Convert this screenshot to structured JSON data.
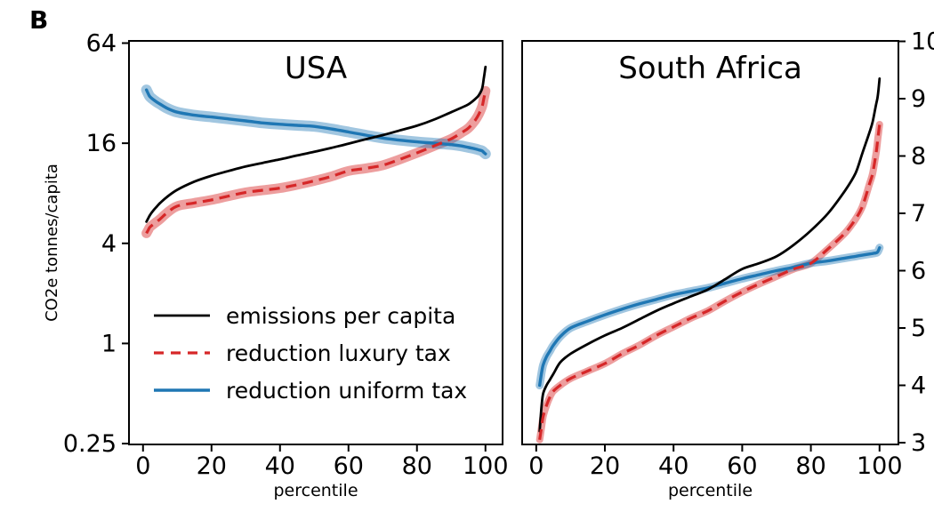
{
  "figure_label": "B",
  "legend": {
    "items": [
      {
        "label": "emissions per capita",
        "series": "emissions"
      },
      {
        "label": "reduction luxury tax",
        "series": "luxury"
      },
      {
        "label": "reduction uniform tax",
        "series": "uniform"
      }
    ]
  },
  "chart_data": [
    {
      "type": "line",
      "title": "USA",
      "xlabel": "percentile",
      "ylabel": "CO2e tonnes/capita",
      "yscale": "log",
      "xlim": [
        -4.1,
        105.0
      ],
      "ylim": [
        0.247,
        66.0
      ],
      "xticks": [
        0,
        20,
        40,
        60,
        80,
        100
      ],
      "xtick_labels": [
        "0",
        "20",
        "40",
        "60",
        "80",
        "100"
      ],
      "yticks": [
        64,
        16,
        4,
        1,
        0.25
      ],
      "ytick_labels": [
        "64",
        "16",
        "4",
        "1",
        "0.25"
      ],
      "ytick_side": "left",
      "x": [
        1,
        1.5,
        2,
        3,
        4,
        5,
        7,
        10,
        15,
        20,
        25,
        30,
        35,
        40,
        45,
        50,
        55,
        60,
        65,
        70,
        75,
        80,
        85,
        90,
        93,
        95,
        97,
        98,
        99,
        99.5,
        100
      ],
      "series": [
        {
          "key": "emissions",
          "name": "emissions per capita",
          "color": "#000000",
          "style": "solid",
          "band": false,
          "values": [
            5.4,
            5.65,
            5.9,
            6.3,
            6.65,
            7.0,
            7.6,
            8.4,
            9.4,
            10.2,
            10.9,
            11.6,
            12.2,
            12.8,
            13.5,
            14.2,
            15.0,
            15.9,
            16.9,
            17.9,
            19.1,
            20.4,
            22.2,
            24.6,
            26.2,
            27.4,
            29.5,
            31.0,
            34.0,
            39.0,
            46.0
          ]
        },
        {
          "key": "luxury",
          "name": "reduction luxury tax",
          "color": "#d62728",
          "style": "dashed",
          "band": true,
          "band_color": "rgba(214,39,40,0.45)",
          "values": [
            4.6,
            4.8,
            5.0,
            5.2,
            5.4,
            5.6,
            6.1,
            6.7,
            7.0,
            7.3,
            7.7,
            8.1,
            8.35,
            8.6,
            9.0,
            9.5,
            10.1,
            10.9,
            11.3,
            11.8,
            12.8,
            14.0,
            15.4,
            17.0,
            18.5,
            19.7,
            22.0,
            23.8,
            26.5,
            29.5,
            33.0
          ]
        },
        {
          "key": "uniform",
          "name": "reduction uniform tax",
          "color": "#1f77b4",
          "style": "solid",
          "band": true,
          "band_color": "rgba(31,119,180,0.42)",
          "values": [
            33.5,
            31.8,
            30.5,
            29.3,
            28.3,
            27.5,
            26.0,
            24.6,
            23.6,
            23.0,
            22.4,
            21.8,
            21.2,
            20.8,
            20.5,
            20.2,
            19.5,
            18.7,
            17.9,
            17.2,
            16.7,
            16.3,
            16.0,
            15.7,
            15.4,
            15.1,
            14.8,
            14.6,
            14.4,
            14.1,
            13.8
          ]
        }
      ]
    },
    {
      "type": "line",
      "title": "South Africa",
      "xlabel": "percentile",
      "ylabel": "",
      "yscale": "linear",
      "xlim": [
        -4.1,
        105.5
      ],
      "ylim": [
        2.969,
        10.008
      ],
      "xticks": [
        0,
        20,
        40,
        60,
        80,
        100
      ],
      "xtick_labels": [
        "0",
        "20",
        "40",
        "60",
        "80",
        "100"
      ],
      "yticks": [
        10,
        9,
        8,
        7,
        6,
        5,
        4,
        3
      ],
      "ytick_labels": [
        "10",
        "9",
        "8",
        "7",
        "6",
        "5",
        "4",
        "3"
      ],
      "ytick_side": "right",
      "x": [
        1,
        1.5,
        2,
        3,
        4,
        5,
        7,
        10,
        15,
        20,
        25,
        30,
        35,
        40,
        45,
        50,
        55,
        60,
        65,
        70,
        75,
        80,
        85,
        90,
        93,
        95,
        97,
        98,
        99,
        99.5,
        100
      ],
      "series": [
        {
          "key": "emissions",
          "name": "emissions per capita",
          "color": "#000000",
          "style": "solid",
          "band": false,
          "values": [
            3.2,
            3.6,
            3.85,
            4.0,
            4.1,
            4.2,
            4.4,
            4.55,
            4.72,
            4.87,
            5.0,
            5.15,
            5.3,
            5.43,
            5.55,
            5.67,
            5.85,
            6.03,
            6.13,
            6.25,
            6.45,
            6.7,
            7.0,
            7.4,
            7.7,
            8.05,
            8.4,
            8.6,
            8.9,
            9.05,
            9.35
          ]
        },
        {
          "key": "luxury",
          "name": "reduction luxury tax",
          "color": "#d62728",
          "style": "dashed",
          "band": true,
          "band_color": "rgba(214,39,40,0.45)",
          "values": [
            3.05,
            3.25,
            3.45,
            3.65,
            3.8,
            3.9,
            4.0,
            4.12,
            4.25,
            4.38,
            4.55,
            4.7,
            4.87,
            5.02,
            5.17,
            5.3,
            5.47,
            5.63,
            5.77,
            5.9,
            6.03,
            6.13,
            6.38,
            6.66,
            6.9,
            7.12,
            7.5,
            7.7,
            8.05,
            8.3,
            8.55
          ]
        },
        {
          "key": "uniform",
          "name": "reduction uniform tax",
          "color": "#1f77b4",
          "style": "solid",
          "band": true,
          "band_color": "rgba(31,119,180,0.42)",
          "values": [
            4.0,
            4.2,
            4.35,
            4.5,
            4.6,
            4.7,
            4.85,
            5.0,
            5.12,
            5.23,
            5.33,
            5.42,
            5.5,
            5.58,
            5.64,
            5.7,
            5.78,
            5.86,
            5.93,
            6.0,
            6.06,
            6.13,
            6.17,
            6.22,
            6.25,
            6.27,
            6.29,
            6.3,
            6.31,
            6.33,
            6.4
          ]
        }
      ]
    }
  ]
}
